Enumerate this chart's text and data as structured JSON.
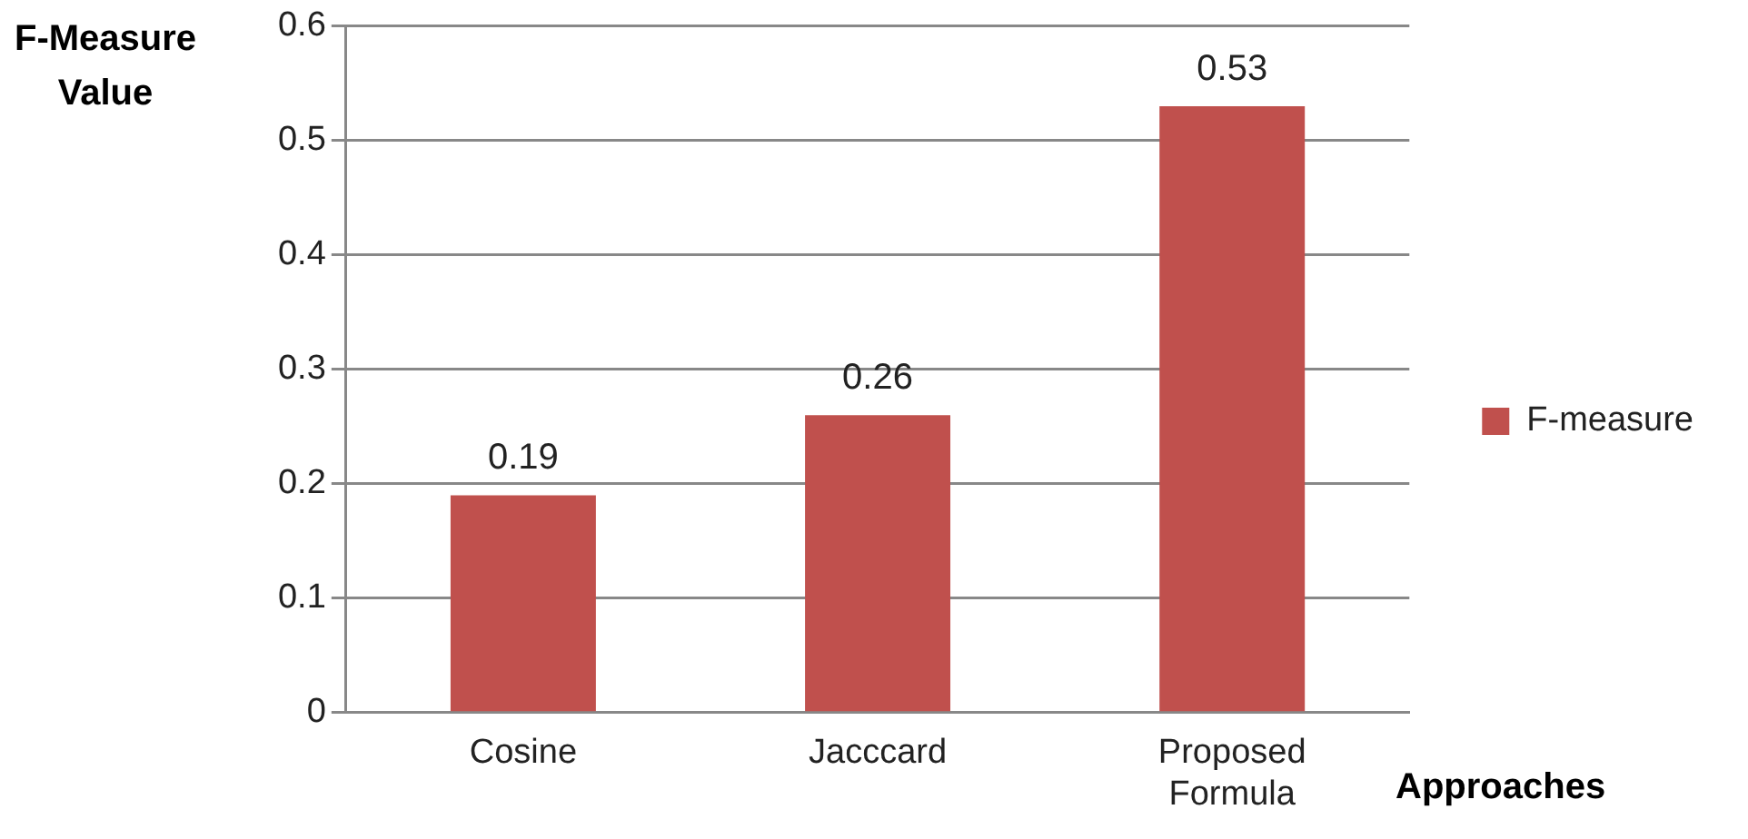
{
  "chart_data": {
    "type": "bar",
    "ylabel": "F-Measure Value",
    "xlabel": "Approaches",
    "categories": [
      "Cosine",
      "Jacccard",
      "Proposed Formula"
    ],
    "series": [
      {
        "name": "F-measure",
        "color": "#c0504d",
        "values": [
          0.19,
          0.26,
          0.53
        ]
      }
    ],
    "ylim": [
      0,
      0.6
    ],
    "yticks": [
      0,
      0.1,
      0.2,
      0.3,
      0.4,
      0.5,
      0.6
    ],
    "grid": "y",
    "legend": "right",
    "data_labels": true
  }
}
